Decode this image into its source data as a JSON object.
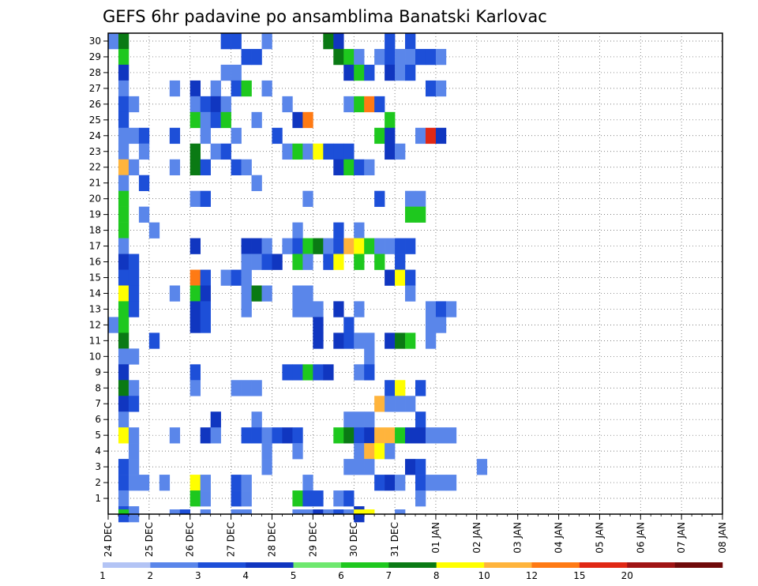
{
  "chart_data": {
    "type": "heatmap",
    "title": "GEFS 6hr padavine po ansamblima Banatski Karlovac",
    "y_ticks": [
      1,
      2,
      3,
      4,
      5,
      6,
      7,
      8,
      9,
      10,
      11,
      12,
      13,
      14,
      15,
      16,
      17,
      18,
      19,
      20,
      21,
      22,
      23,
      24,
      25,
      26,
      27,
      28,
      29,
      30
    ],
    "y_range": [
      0,
      30.5
    ],
    "x_ticks": [
      "24 DEC",
      "25 DEC",
      "26 DEC",
      "27 DEC",
      "28 DEC",
      "29 DEC",
      "30 DEC",
      "31 DEC",
      "01 JAN",
      "02 JAN",
      "03 JAN",
      "04 JAN",
      "05 JAN",
      "06 JAN",
      "07 JAN",
      "08 JAN"
    ],
    "steps_per_day": 4,
    "total_steps": 60,
    "grid": "dotted",
    "color_scale": {
      "labels": [
        "1",
        "2",
        "3",
        "4",
        "5",
        "6",
        "7",
        "8",
        "10",
        "12",
        "15",
        "20"
      ],
      "colors": [
        "#b3c4f5",
        "#5a86ea",
        "#1d4fd8",
        "#1036c0",
        "#6ee86e",
        "#1ec81e",
        "#0a7a14",
        "#ffff00",
        "#ffb43c",
        "#ff7a14",
        "#e02814",
        "#a01414",
        "#700a0a"
      ]
    },
    "cells": [
      [
        30,
        0,
        1
      ],
      [
        30,
        1,
        6
      ],
      [
        30,
        11,
        2
      ],
      [
        30,
        12,
        2
      ],
      [
        30,
        15,
        1
      ],
      [
        30,
        21,
        6
      ],
      [
        30,
        22,
        3
      ],
      [
        30,
        27,
        2
      ],
      [
        30,
        29,
        2
      ],
      [
        29,
        1,
        5
      ],
      [
        29,
        13,
        2
      ],
      [
        29,
        14,
        2
      ],
      [
        29,
        22,
        6
      ],
      [
        29,
        23,
        5
      ],
      [
        29,
        24,
        1
      ],
      [
        29,
        26,
        1
      ],
      [
        29,
        27,
        2
      ],
      [
        29,
        28,
        1
      ],
      [
        29,
        29,
        1
      ],
      [
        29,
        30,
        2
      ],
      [
        29,
        31,
        2
      ],
      [
        29,
        32,
        1
      ],
      [
        28,
        1,
        3
      ],
      [
        28,
        11,
        1
      ],
      [
        28,
        12,
        1
      ],
      [
        28,
        23,
        3
      ],
      [
        28,
        24,
        5
      ],
      [
        28,
        25,
        2
      ],
      [
        28,
        27,
        3
      ],
      [
        28,
        28,
        1
      ],
      [
        28,
        29,
        2
      ],
      [
        27,
        1,
        1
      ],
      [
        27,
        6,
        1
      ],
      [
        27,
        8,
        3
      ],
      [
        27,
        10,
        1
      ],
      [
        27,
        12,
        2
      ],
      [
        27,
        13,
        5
      ],
      [
        27,
        15,
        1
      ],
      [
        27,
        31,
        2
      ],
      [
        27,
        32,
        1
      ],
      [
        26,
        1,
        2
      ],
      [
        26,
        2,
        1
      ],
      [
        26,
        8,
        1
      ],
      [
        26,
        9,
        2
      ],
      [
        26,
        10,
        3
      ],
      [
        26,
        11,
        1
      ],
      [
        26,
        17,
        1
      ],
      [
        26,
        23,
        1
      ],
      [
        26,
        24,
        5
      ],
      [
        26,
        25,
        9
      ],
      [
        26,
        26,
        2
      ],
      [
        25,
        1,
        2
      ],
      [
        25,
        8,
        5
      ],
      [
        25,
        9,
        1
      ],
      [
        25,
        10,
        2
      ],
      [
        25,
        11,
        5
      ],
      [
        25,
        14,
        1
      ],
      [
        25,
        18,
        3
      ],
      [
        25,
        19,
        9
      ],
      [
        25,
        27,
        5
      ],
      [
        24,
        1,
        1
      ],
      [
        24,
        2,
        1
      ],
      [
        24,
        3,
        2
      ],
      [
        24,
        6,
        2
      ],
      [
        24,
        9,
        1
      ],
      [
        24,
        12,
        1
      ],
      [
        24,
        16,
        2
      ],
      [
        24,
        26,
        5
      ],
      [
        24,
        27,
        3
      ],
      [
        24,
        30,
        1
      ],
      [
        24,
        31,
        10
      ],
      [
        24,
        32,
        3
      ],
      [
        23,
        1,
        1
      ],
      [
        23,
        3,
        1
      ],
      [
        23,
        8,
        6
      ],
      [
        23,
        10,
        1
      ],
      [
        23,
        11,
        2
      ],
      [
        23,
        17,
        1
      ],
      [
        23,
        18,
        5
      ],
      [
        23,
        19,
        1
      ],
      [
        23,
        20,
        7
      ],
      [
        23,
        21,
        2
      ],
      [
        23,
        22,
        2
      ],
      [
        23,
        23,
        2
      ],
      [
        23,
        27,
        3
      ],
      [
        23,
        28,
        1
      ],
      [
        22,
        1,
        8
      ],
      [
        22,
        2,
        1
      ],
      [
        22,
        6,
        1
      ],
      [
        22,
        8,
        6
      ],
      [
        22,
        9,
        2
      ],
      [
        22,
        12,
        2
      ],
      [
        22,
        13,
        1
      ],
      [
        22,
        22,
        3
      ],
      [
        22,
        23,
        5
      ],
      [
        22,
        24,
        2
      ],
      [
        22,
        25,
        1
      ],
      [
        21,
        1,
        1
      ],
      [
        21,
        3,
        2
      ],
      [
        21,
        14,
        1
      ],
      [
        20,
        1,
        5
      ],
      [
        20,
        8,
        1
      ],
      [
        20,
        9,
        2
      ],
      [
        20,
        19,
        1
      ],
      [
        20,
        26,
        2
      ],
      [
        20,
        29,
        1
      ],
      [
        20,
        30,
        1
      ],
      [
        19,
        1,
        5
      ],
      [
        19,
        3,
        1
      ],
      [
        19,
        29,
        5
      ],
      [
        19,
        30,
        5
      ],
      [
        18,
        1,
        5
      ],
      [
        18,
        4,
        1
      ],
      [
        18,
        18,
        1
      ],
      [
        18,
        22,
        2
      ],
      [
        18,
        24,
        1
      ],
      [
        17,
        1,
        1
      ],
      [
        17,
        8,
        3
      ],
      [
        17,
        13,
        3
      ],
      [
        17,
        14,
        3
      ],
      [
        17,
        15,
        1
      ],
      [
        17,
        17,
        1
      ],
      [
        17,
        18,
        2
      ],
      [
        17,
        19,
        5
      ],
      [
        17,
        20,
        6
      ],
      [
        17,
        21,
        1
      ],
      [
        17,
        22,
        2
      ],
      [
        17,
        23,
        8
      ],
      [
        17,
        24,
        7
      ],
      [
        17,
        25,
        5
      ],
      [
        17,
        26,
        1
      ],
      [
        17,
        27,
        1
      ],
      [
        17,
        28,
        2
      ],
      [
        17,
        29,
        2
      ],
      [
        16,
        1,
        3
      ],
      [
        16,
        2,
        2
      ],
      [
        16,
        13,
        1
      ],
      [
        16,
        14,
        1
      ],
      [
        16,
        15,
        2
      ],
      [
        16,
        16,
        3
      ],
      [
        16,
        18,
        5
      ],
      [
        16,
        19,
        1
      ],
      [
        16,
        21,
        2
      ],
      [
        16,
        22,
        7
      ],
      [
        16,
        24,
        5
      ],
      [
        16,
        26,
        5
      ],
      [
        16,
        28,
        2
      ],
      [
        15,
        1,
        2
      ],
      [
        15,
        2,
        2
      ],
      [
        15,
        8,
        9
      ],
      [
        15,
        9,
        2
      ],
      [
        15,
        11,
        1
      ],
      [
        15,
        12,
        2
      ],
      [
        15,
        13,
        1
      ],
      [
        15,
        27,
        3
      ],
      [
        15,
        28,
        7
      ],
      [
        15,
        29,
        2
      ],
      [
        14,
        1,
        7
      ],
      [
        14,
        2,
        2
      ],
      [
        14,
        6,
        1
      ],
      [
        14,
        8,
        5
      ],
      [
        14,
        9,
        3
      ],
      [
        14,
        13,
        1
      ],
      [
        14,
        14,
        6
      ],
      [
        14,
        15,
        1
      ],
      [
        14,
        18,
        1
      ],
      [
        14,
        19,
        1
      ],
      [
        14,
        29,
        1
      ],
      [
        13,
        1,
        5
      ],
      [
        13,
        2,
        2
      ],
      [
        13,
        8,
        3
      ],
      [
        13,
        9,
        2
      ],
      [
        13,
        13,
        1
      ],
      [
        13,
        18,
        1
      ],
      [
        13,
        19,
        1
      ],
      [
        13,
        20,
        1
      ],
      [
        13,
        22,
        3
      ],
      [
        13,
        24,
        1
      ],
      [
        13,
        31,
        1
      ],
      [
        13,
        32,
        2
      ],
      [
        13,
        33,
        1
      ],
      [
        12,
        0,
        1
      ],
      [
        12,
        1,
        5
      ],
      [
        12,
        8,
        3
      ],
      [
        12,
        9,
        2
      ],
      [
        12,
        20,
        3
      ],
      [
        12,
        23,
        2
      ],
      [
        12,
        31,
        1
      ],
      [
        12,
        32,
        1
      ],
      [
        11,
        1,
        6
      ],
      [
        11,
        4,
        2
      ],
      [
        11,
        20,
        3
      ],
      [
        11,
        22,
        3
      ],
      [
        11,
        23,
        2
      ],
      [
        11,
        24,
        1
      ],
      [
        11,
        25,
        1
      ],
      [
        11,
        27,
        3
      ],
      [
        11,
        28,
        6
      ],
      [
        11,
        29,
        5
      ],
      [
        11,
        31,
        1
      ],
      [
        10,
        1,
        1
      ],
      [
        10,
        2,
        1
      ],
      [
        10,
        25,
        1
      ],
      [
        9,
        1,
        3
      ],
      [
        9,
        8,
        2
      ],
      [
        9,
        17,
        2
      ],
      [
        9,
        18,
        2
      ],
      [
        9,
        19,
        5
      ],
      [
        9,
        20,
        2
      ],
      [
        9,
        21,
        3
      ],
      [
        9,
        24,
        1
      ],
      [
        9,
        25,
        2
      ],
      [
        8,
        1,
        6
      ],
      [
        8,
        2,
        1
      ],
      [
        8,
        8,
        1
      ],
      [
        8,
        12,
        1
      ],
      [
        8,
        13,
        1
      ],
      [
        8,
        14,
        1
      ],
      [
        8,
        27,
        2
      ],
      [
        8,
        28,
        7
      ],
      [
        8,
        30,
        2
      ],
      [
        7,
        1,
        3
      ],
      [
        7,
        2,
        2
      ],
      [
        7,
        26,
        8
      ],
      [
        7,
        27,
        1
      ],
      [
        7,
        28,
        1
      ],
      [
        7,
        29,
        1
      ],
      [
        6,
        1,
        1
      ],
      [
        6,
        10,
        3
      ],
      [
        6,
        14,
        1
      ],
      [
        6,
        23,
        1
      ],
      [
        6,
        24,
        1
      ],
      [
        6,
        25,
        1
      ],
      [
        6,
        30,
        2
      ],
      [
        5,
        1,
        7
      ],
      [
        5,
        2,
        1
      ],
      [
        5,
        6,
        1
      ],
      [
        5,
        9,
        3
      ],
      [
        5,
        10,
        1
      ],
      [
        5,
        13,
        2
      ],
      [
        5,
        14,
        2
      ],
      [
        5,
        15,
        1
      ],
      [
        5,
        16,
        2
      ],
      [
        5,
        17,
        3
      ],
      [
        5,
        18,
        2
      ],
      [
        5,
        22,
        5
      ],
      [
        5,
        23,
        6
      ],
      [
        5,
        24,
        2
      ],
      [
        5,
        25,
        3
      ],
      [
        5,
        26,
        8
      ],
      [
        5,
        27,
        8
      ],
      [
        5,
        28,
        5
      ],
      [
        5,
        29,
        3
      ],
      [
        5,
        30,
        3
      ],
      [
        5,
        31,
        1
      ],
      [
        5,
        32,
        1
      ],
      [
        5,
        33,
        1
      ],
      [
        4,
        2,
        1
      ],
      [
        4,
        15,
        1
      ],
      [
        4,
        18,
        1
      ],
      [
        4,
        24,
        1
      ],
      [
        4,
        25,
        8
      ],
      [
        4,
        26,
        7
      ],
      [
        4,
        27,
        1
      ],
      [
        3,
        1,
        2
      ],
      [
        3,
        2,
        1
      ],
      [
        3,
        15,
        1
      ],
      [
        3,
        23,
        1
      ],
      [
        3,
        24,
        1
      ],
      [
        3,
        25,
        1
      ],
      [
        3,
        29,
        3
      ],
      [
        3,
        30,
        2
      ],
      [
        3,
        36,
        1
      ],
      [
        2,
        1,
        2
      ],
      [
        2,
        2,
        1
      ],
      [
        2,
        3,
        1
      ],
      [
        2,
        5,
        1
      ],
      [
        2,
        8,
        7
      ],
      [
        2,
        9,
        1
      ],
      [
        2,
        12,
        2
      ],
      [
        2,
        13,
        1
      ],
      [
        2,
        19,
        1
      ],
      [
        2,
        26,
        2
      ],
      [
        2,
        27,
        3
      ],
      [
        2,
        28,
        1
      ],
      [
        2,
        30,
        2
      ],
      [
        2,
        31,
        1
      ],
      [
        2,
        32,
        1
      ],
      [
        2,
        33,
        1
      ],
      [
        1,
        1,
        1
      ],
      [
        1,
        8,
        5
      ],
      [
        1,
        9,
        1
      ],
      [
        1,
        12,
        2
      ],
      [
        1,
        13,
        1
      ],
      [
        1,
        18,
        5
      ],
      [
        1,
        19,
        2
      ],
      [
        1,
        20,
        2
      ],
      [
        1,
        22,
        1
      ],
      [
        1,
        23,
        2
      ],
      [
        1,
        30,
        1
      ],
      [
        0,
        1,
        2
      ],
      [
        0,
        2,
        1
      ],
      [
        0,
        24,
        3
      ],
      [
        -1,
        1,
        5
      ],
      [
        -1,
        6,
        1
      ],
      [
        -1,
        7,
        2
      ],
      [
        -1,
        9,
        1
      ],
      [
        -1,
        12,
        1
      ],
      [
        -1,
        13,
        1
      ],
      [
        -1,
        18,
        1
      ],
      [
        -1,
        19,
        1
      ],
      [
        -1,
        20,
        3
      ],
      [
        -1,
        21,
        1
      ],
      [
        -1,
        22,
        2
      ],
      [
        -1,
        23,
        1
      ],
      [
        -1,
        24,
        7
      ],
      [
        -1,
        25,
        7
      ],
      [
        -1,
        28,
        1
      ]
    ]
  }
}
